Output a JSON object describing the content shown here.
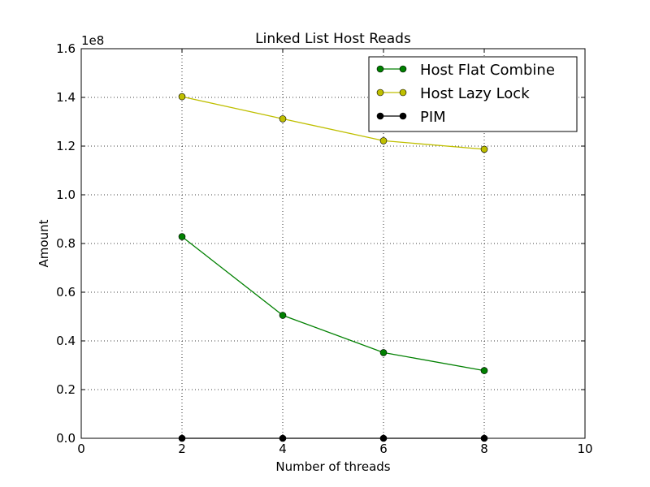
{
  "chart_data": {
    "type": "line",
    "title": "Linked List Host Reads",
    "xlabel": "Number of threads",
    "ylabel": "Amount",
    "y_scale_label": "1e8",
    "xlim": [
      0,
      10
    ],
    "ylim": [
      0,
      160000000
    ],
    "x_ticks": [
      0,
      2,
      4,
      6,
      8,
      10
    ],
    "x_tick_labels": [
      "0",
      "2",
      "4",
      "6",
      "8",
      "10"
    ],
    "y_ticks": [
      0,
      20000000,
      40000000,
      60000000,
      80000000,
      100000000,
      120000000,
      140000000,
      160000000
    ],
    "y_tick_labels": [
      "0.0",
      "0.2",
      "0.4",
      "0.6",
      "0.8",
      "1.0",
      "1.2",
      "1.4",
      "1.6"
    ],
    "grid": true,
    "legend_position": "top-right",
    "x": [
      2,
      4,
      6,
      8
    ],
    "series": [
      {
        "name": "Host Flat Combine",
        "color": "#008000",
        "values": [
          82800000,
          50500000,
          35200000,
          27800000
        ]
      },
      {
        "name": "Host Lazy Lock",
        "color": "#bfbf00",
        "values": [
          140300000,
          131200000,
          122200000,
          118700000
        ]
      },
      {
        "name": "PIM",
        "color": "#000000",
        "values": [
          0,
          0,
          0,
          0
        ]
      }
    ]
  }
}
